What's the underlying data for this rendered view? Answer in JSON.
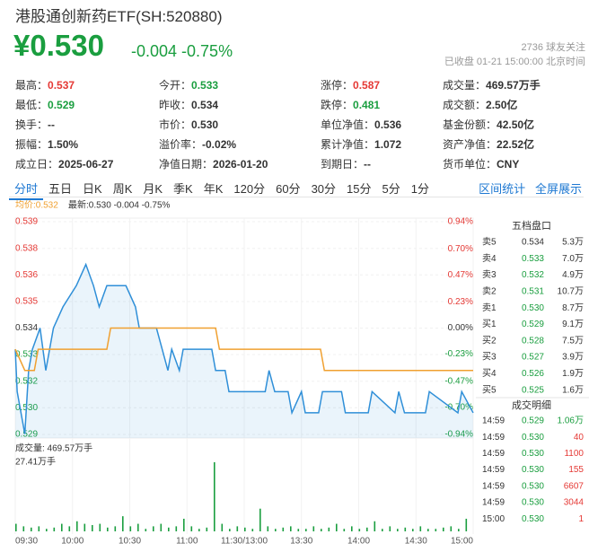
{
  "header": {
    "title": "港股通创新药ETF(SH:520880)",
    "price": "¥0.530",
    "change": "-0.004 -0.75%",
    "followers": "2736 球友关注",
    "status": "已收盘 01-21 15:00:00 北京时间"
  },
  "stats": [
    [
      {
        "label": "最高：",
        "value": "0.537",
        "color": "#e53935"
      },
      {
        "label": "今开：",
        "value": "0.533",
        "color": "#1a9e3f"
      },
      {
        "label": "涨停：",
        "value": "0.587",
        "color": "#e53935"
      },
      {
        "label": "成交量：",
        "value": "469.57万手",
        "color": "#333"
      }
    ],
    [
      {
        "label": "最低：",
        "value": "0.529",
        "color": "#1a9e3f"
      },
      {
        "label": "昨收：",
        "value": "0.534",
        "color": "#333"
      },
      {
        "label": "跌停：",
        "value": "0.481",
        "color": "#1a9e3f"
      },
      {
        "label": "成交额：",
        "value": "2.50亿",
        "color": "#333"
      }
    ],
    [
      {
        "label": "换手：",
        "value": "--",
        "color": "#333"
      },
      {
        "label": "市价：",
        "value": "0.530",
        "color": "#333"
      },
      {
        "label": "单位净值：",
        "value": "0.536",
        "color": "#333"
      },
      {
        "label": "基金份额：",
        "value": "42.50亿",
        "color": "#333"
      }
    ],
    [
      {
        "label": "振幅：",
        "value": "1.50%",
        "color": "#333"
      },
      {
        "label": "溢价率：",
        "value": "-0.02%",
        "color": "#333"
      },
      {
        "label": "累计净值：",
        "value": "1.072",
        "color": "#333"
      },
      {
        "label": "资产净值：",
        "value": "22.52亿",
        "color": "#333"
      }
    ],
    [
      {
        "label": "成立日：",
        "value": "2025-06-27",
        "color": "#333"
      },
      {
        "label": "净值日期：",
        "value": "2026-01-20",
        "color": "#333"
      },
      {
        "label": "到期日：",
        "value": "--",
        "color": "#333"
      },
      {
        "label": "货币单位：",
        "value": "CNY",
        "color": "#333"
      }
    ]
  ],
  "tabs": [
    "分时",
    "五日",
    "日K",
    "周K",
    "月K",
    "季K",
    "年K",
    "120分",
    "60分",
    "30分",
    "15分",
    "5分",
    "1分"
  ],
  "tab_links": [
    "区间统计",
    "全屏展示"
  ],
  "order_book": {
    "title": "五档盘口",
    "rows": [
      [
        "卖5",
        "0.534",
        "5.3万"
      ],
      [
        "卖4",
        "0.533",
        "7.0万"
      ],
      [
        "卖3",
        "0.532",
        "4.9万"
      ],
      [
        "卖2",
        "0.531",
        "10.7万"
      ],
      [
        "卖1",
        "0.530",
        "8.7万"
      ],
      [
        "买1",
        "0.529",
        "9.1万"
      ],
      [
        "买2",
        "0.528",
        "7.5万"
      ],
      [
        "买3",
        "0.527",
        "3.9万"
      ],
      [
        "买4",
        "0.526",
        "1.9万"
      ],
      [
        "买5",
        "0.525",
        "1.6万"
      ]
    ]
  },
  "trades": {
    "title": "成交明细",
    "rows": [
      [
        "14:59",
        "0.529",
        "1.06万"
      ],
      [
        "14:59",
        "0.530",
        "40"
      ],
      [
        "14:59",
        "0.530",
        "1100"
      ],
      [
        "14:59",
        "0.530",
        "155"
      ],
      [
        "14:59",
        "0.530",
        "6607"
      ],
      [
        "14:59",
        "0.530",
        "3044"
      ],
      [
        "15:00",
        "0.530",
        "1"
      ]
    ],
    "vol_colors": [
      "#1a9e3f",
      "#e53935",
      "#e53935",
      "#e53935",
      "#e53935",
      "#e53935",
      "#e53935"
    ]
  },
  "chart_data": [
    {
      "type": "line",
      "avg_label": "均价:0.532",
      "latest_label": "最新:0.530 -0.004 -0.75%",
      "xlim": [
        0,
        240
      ],
      "xticks": [
        {
          "value": 0,
          "label": "09:30"
        },
        {
          "value": 30,
          "label": "10:00"
        },
        {
          "value": 60,
          "label": "10:30"
        },
        {
          "value": 90,
          "label": "11:00"
        },
        {
          "value": 120,
          "label": "11:30/13:00"
        },
        {
          "value": 150,
          "label": "13:30"
        },
        {
          "value": 180,
          "label": "14:00"
        },
        {
          "value": 210,
          "label": "14:30"
        },
        {
          "value": 240,
          "label": "15:00"
        }
      ],
      "ylim": [
        0.52898,
        0.53902
      ],
      "yticks": [
        {
          "value": 0.53902,
          "label": "0.539"
        },
        {
          "value": 0.53776,
          "label": "0.538"
        },
        {
          "value": 0.53651,
          "label": "0.536"
        },
        {
          "value": 0.53525,
          "label": "0.535"
        },
        {
          "value": 0.534,
          "label": "0.534"
        },
        {
          "value": 0.53275,
          "label": "0.533"
        },
        {
          "value": 0.53149,
          "label": "0.532"
        },
        {
          "value": 0.53024,
          "label": "0.530"
        },
        {
          "value": 0.52898,
          "label": "0.529"
        }
      ],
      "y2lim": [
        -0.94,
        0.94
      ],
      "y2ticks": [
        {
          "value": 0.94,
          "label": "0.94%"
        },
        {
          "value": 0.7,
          "label": "0.70%"
        },
        {
          "value": 0.47,
          "label": "0.47%"
        },
        {
          "value": 0.23,
          "label": "0.23%"
        },
        {
          "value": 0,
          "label": "0.00%"
        },
        {
          "value": -0.23,
          "label": "-0.23%"
        },
        {
          "value": -0.47,
          "label": "-0.47%"
        },
        {
          "value": -0.7,
          "label": "-0.70%"
        },
        {
          "value": -0.94,
          "label": "-0.94%"
        }
      ],
      "grid": true,
      "series": [
        {
          "name": "最新",
          "color": "#2f8fd8",
          "area": true,
          "x": [
            0,
            1,
            3,
            5,
            7,
            9,
            13,
            16,
            18,
            20,
            25,
            32,
            37,
            41,
            44,
            48,
            58,
            63,
            65,
            74,
            77,
            80,
            82,
            86,
            88,
            103,
            105,
            110,
            112,
            131,
            133,
            136,
            143,
            145,
            150,
            152,
            159,
            161,
            171,
            173,
            185,
            187,
            199,
            201,
            204,
            215,
            217,
            232,
            234,
            240
          ],
          "values": [
            0.533,
            0.531,
            0.53,
            0.529,
            0.532,
            0.533,
            0.534,
            0.532,
            0.533,
            0.534,
            0.535,
            0.536,
            0.537,
            0.536,
            0.535,
            0.536,
            0.536,
            0.535,
            0.534,
            0.534,
            0.533,
            0.532,
            0.533,
            0.532,
            0.533,
            0.533,
            0.532,
            0.532,
            0.531,
            0.531,
            0.532,
            0.531,
            0.531,
            0.53,
            0.531,
            0.53,
            0.53,
            0.531,
            0.531,
            0.53,
            0.53,
            0.531,
            0.53,
            0.531,
            0.53,
            0.53,
            0.531,
            0.53,
            0.531,
            0.53
          ]
        },
        {
          "name": "均价",
          "color": "#f0a030",
          "area": false,
          "x": [
            0,
            5,
            10,
            12,
            48,
            50,
            105,
            107,
            160,
            162,
            240
          ],
          "values": [
            0.533,
            0.532,
            0.532,
            0.533,
            0.533,
            0.534,
            0.534,
            0.533,
            0.533,
            0.532,
            0.532
          ]
        }
      ]
    },
    {
      "type": "bar",
      "volume_label": "成交量: 469.57万手",
      "color": "#1a9e3f",
      "xlim": [
        0,
        240
      ],
      "ylim": [
        0,
        27.41
      ],
      "yticks": [
        {
          "value": 27.41,
          "label": "27.41万手"
        }
      ],
      "x": [
        0,
        4,
        8,
        12,
        16,
        20,
        24,
        28,
        32,
        36,
        40,
        44,
        48,
        52,
        56,
        60,
        64,
        68,
        72,
        76,
        80,
        84,
        88,
        92,
        96,
        100,
        104,
        108,
        112,
        116,
        120,
        124,
        128,
        132,
        136,
        140,
        144,
        148,
        152,
        156,
        160,
        164,
        168,
        172,
        176,
        180,
        184,
        188,
        192,
        196,
        200,
        204,
        208,
        212,
        216,
        220,
        224,
        228,
        232,
        236
      ],
      "values": [
        3,
        2,
        1.5,
        2,
        1,
        1.5,
        3,
        2,
        4,
        3,
        2.5,
        3,
        1.5,
        2,
        6,
        2,
        3,
        1,
        2,
        3,
        1.5,
        2,
        5,
        2,
        1,
        1.5,
        27.41,
        3,
        1,
        2,
        1.5,
        1,
        9,
        2,
        1,
        1.5,
        2,
        1,
        1,
        2,
        1,
        1.5,
        3,
        1,
        2,
        1,
        1.5,
        4,
        1,
        2,
        1,
        1.5,
        1,
        2,
        1,
        1,
        1.5,
        2,
        1,
        5
      ]
    }
  ]
}
